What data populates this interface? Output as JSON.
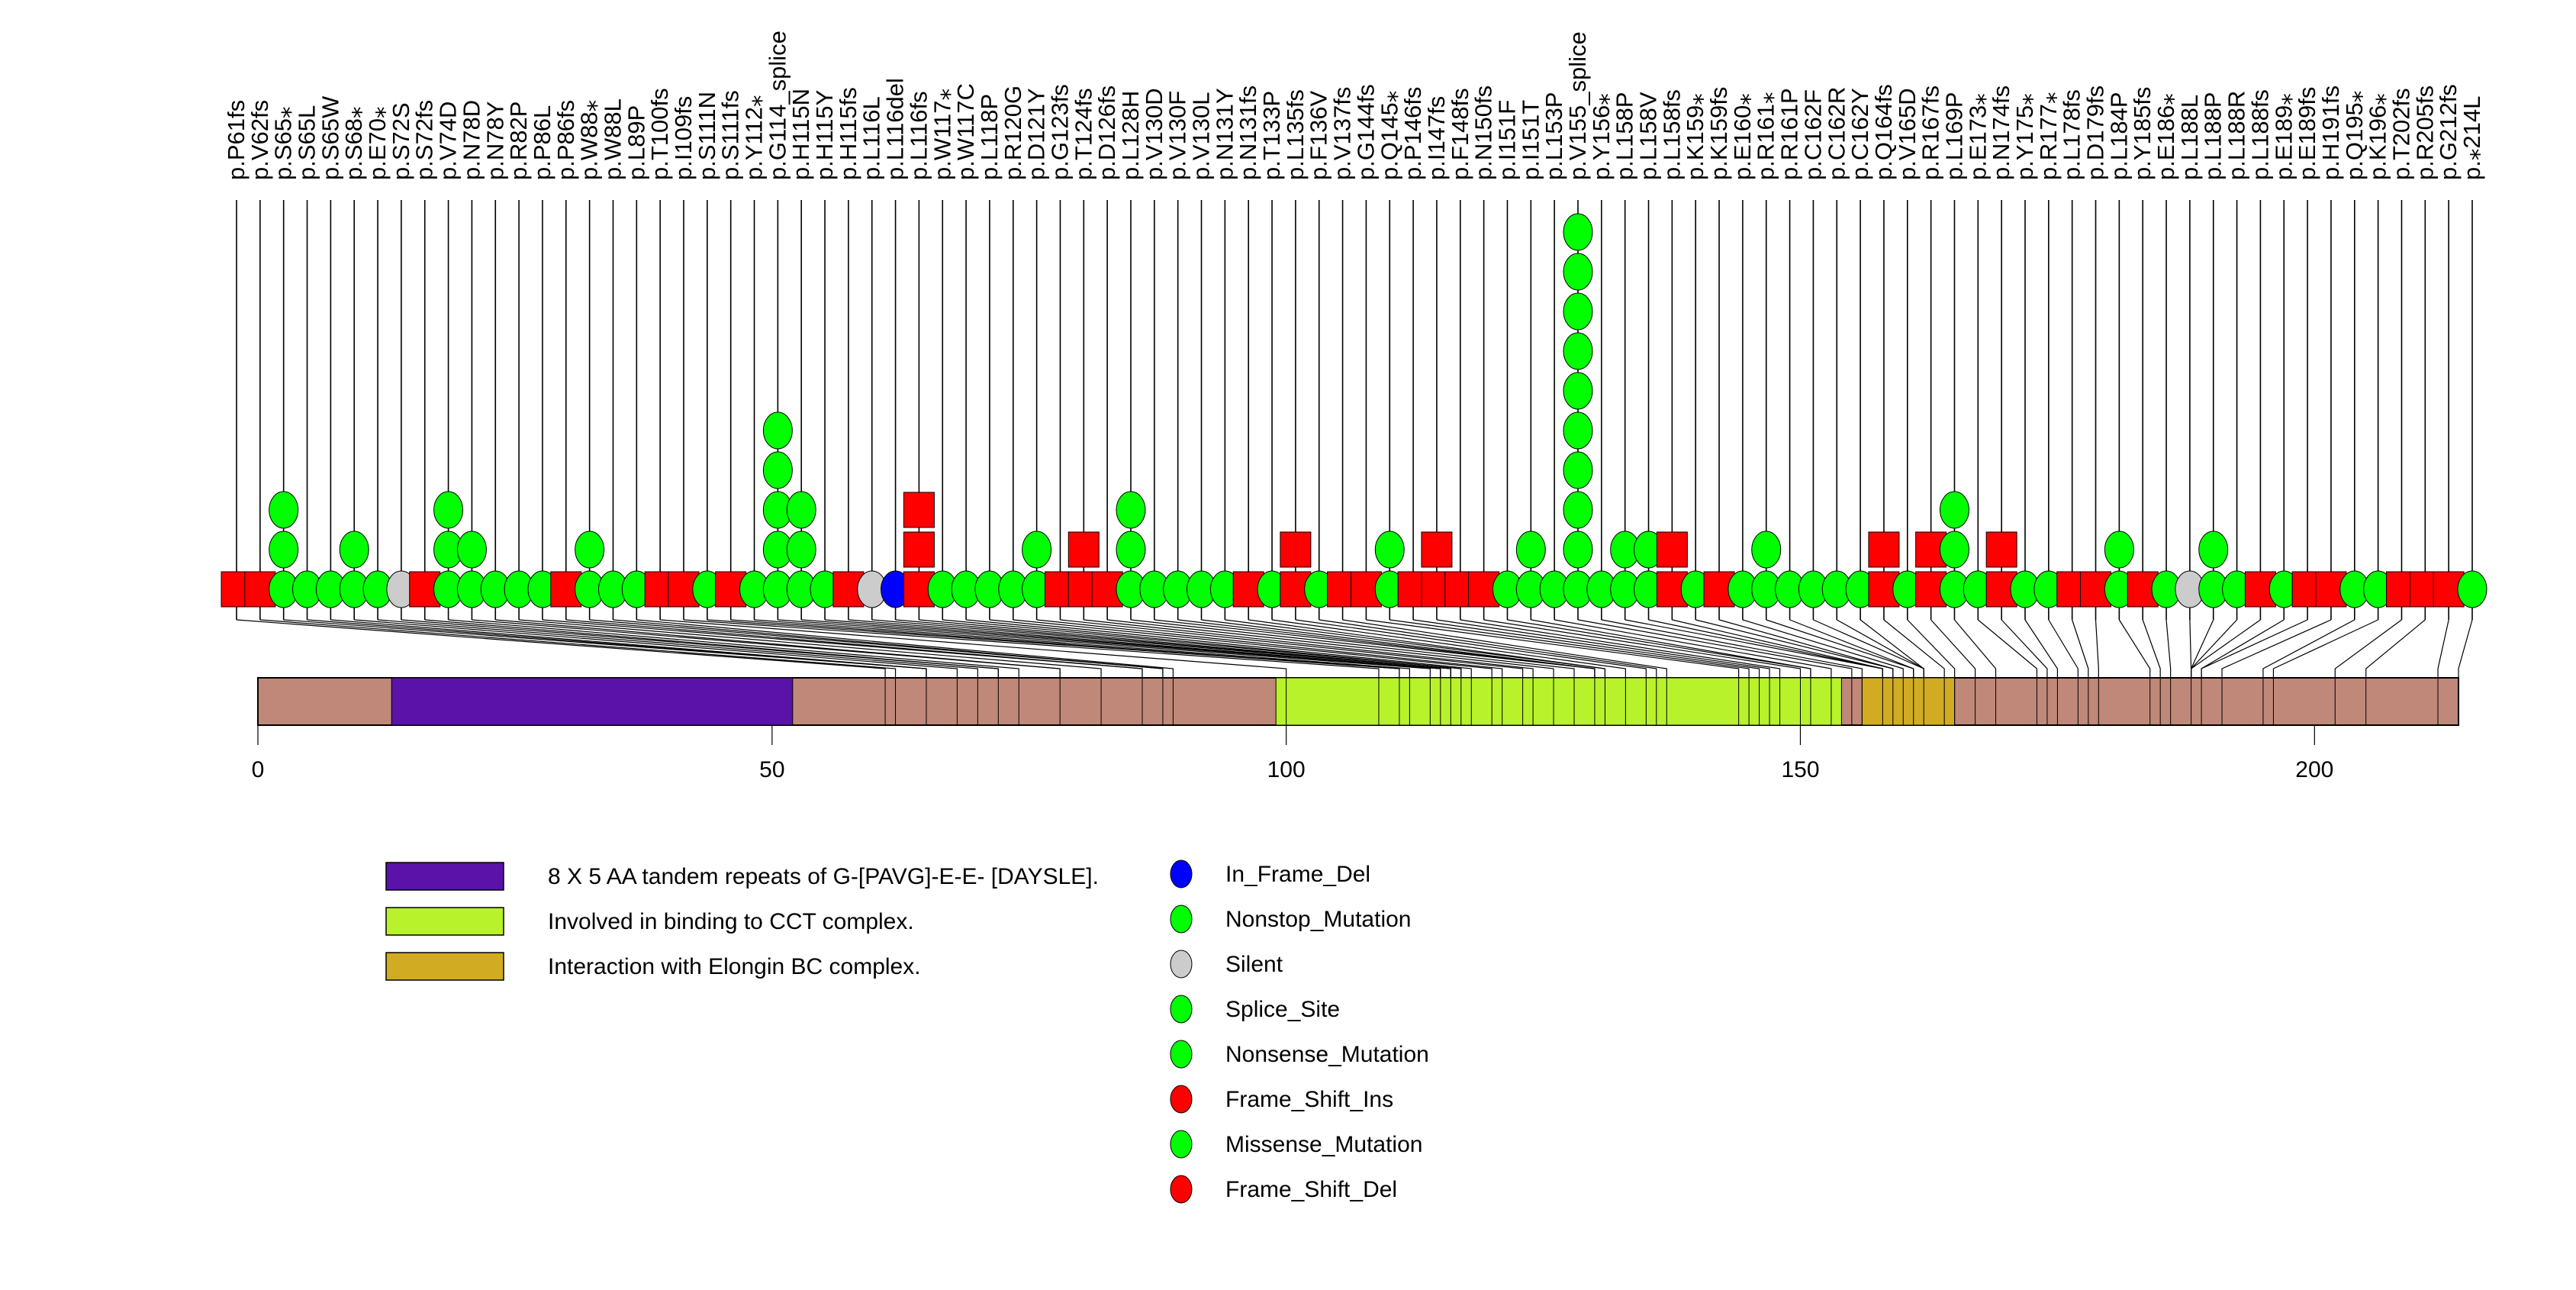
{
  "chart_data": {
    "type": "lollipop",
    "title": "",
    "xlabel": "",
    "protein_length": 214,
    "xlim": [
      0,
      214
    ],
    "axis_ticks": [
      0,
      50,
      100,
      150,
      200
    ],
    "domains": [
      {
        "name": "8 X 5 AA tandem repeats of G-[PAVG]-E-E- [DAYSLE].",
        "start": 13,
        "end": 52,
        "color": "#5a12a8"
      },
      {
        "name": "Involved in binding to CCT complex.",
        "start": 99,
        "end": 154,
        "color": "#b8f22a"
      },
      {
        "name": "Interaction with Elongin BC complex.",
        "start": 156,
        "end": 165,
        "color": "#d1ac22"
      }
    ],
    "backbone_color": "#c08878",
    "mutation_types": [
      {
        "name": "In_Frame_Del",
        "color": "#0000ff",
        "shape": "circle"
      },
      {
        "name": "Nonstop_Mutation",
        "color": "#00ff00",
        "shape": "circle"
      },
      {
        "name": "Silent",
        "color": "#cccccc",
        "shape": "circle"
      },
      {
        "name": "Splice_Site",
        "color": "#00ff00",
        "shape": "circle"
      },
      {
        "name": "Nonsense_Mutation",
        "color": "#00ff00",
        "shape": "circle"
      },
      {
        "name": "Frame_Shift_Ins",
        "color": "#ff0000",
        "shape": "square"
      },
      {
        "name": "Missense_Mutation",
        "color": "#00ff00",
        "shape": "circle"
      },
      {
        "name": "Frame_Shift_Del",
        "color": "#ff0000",
        "shape": "square"
      }
    ],
    "mutations": [
      {
        "label": "p.P61fs",
        "pos": 61,
        "type": "Frame_Shift_Del",
        "count": 1
      },
      {
        "label": "p.V62fs",
        "pos": 62,
        "type": "Frame_Shift_Del",
        "count": 1
      },
      {
        "label": "p.S65*",
        "pos": 65,
        "type": "Nonsense_Mutation",
        "count": 3
      },
      {
        "label": "p.S65L",
        "pos": 65,
        "type": "Missense_Mutation",
        "count": 1
      },
      {
        "label": "p.S65W",
        "pos": 65,
        "type": "Missense_Mutation",
        "count": 1
      },
      {
        "label": "p.S68*",
        "pos": 68,
        "type": "Nonsense_Mutation",
        "count": 2
      },
      {
        "label": "p.E70*",
        "pos": 70,
        "type": "Nonsense_Mutation",
        "count": 1
      },
      {
        "label": "p.S72S",
        "pos": 72,
        "type": "Silent",
        "count": 1
      },
      {
        "label": "p.S72fs",
        "pos": 72,
        "type": "Frame_Shift_Del",
        "count": 1
      },
      {
        "label": "p.V74D",
        "pos": 74,
        "type": "Missense_Mutation",
        "count": 3
      },
      {
        "label": "p.N78D",
        "pos": 78,
        "type": "Missense_Mutation",
        "count": 2
      },
      {
        "label": "p.N78Y",
        "pos": 78,
        "type": "Missense_Mutation",
        "count": 1
      },
      {
        "label": "p.R82P",
        "pos": 82,
        "type": "Missense_Mutation",
        "count": 1
      },
      {
        "label": "p.P86L",
        "pos": 86,
        "type": "Missense_Mutation",
        "count": 1
      },
      {
        "label": "p.P86fs",
        "pos": 86,
        "type": "Frame_Shift_Del",
        "count": 1
      },
      {
        "label": "p.W88*",
        "pos": 88,
        "type": "Nonsense_Mutation",
        "count": 2
      },
      {
        "label": "p.W88L",
        "pos": 88,
        "type": "Missense_Mutation",
        "count": 1
      },
      {
        "label": "p.L89P",
        "pos": 89,
        "type": "Missense_Mutation",
        "count": 1
      },
      {
        "label": "p.T100fs",
        "pos": 100,
        "type": "Frame_Shift_Del",
        "count": 1
      },
      {
        "label": "p.I109fs",
        "pos": 109,
        "type": "Frame_Shift_Del",
        "count": 1
      },
      {
        "label": "p.S111N",
        "pos": 111,
        "type": "Missense_Mutation",
        "count": 1
      },
      {
        "label": "p.S111fs",
        "pos": 111,
        "type": "Frame_Shift_Del",
        "count": 1
      },
      {
        "label": "p.Y112*",
        "pos": 112,
        "type": "Nonsense_Mutation",
        "count": 1
      },
      {
        "label": "p.G114_splice",
        "pos": 114,
        "type": "Splice_Site",
        "count": 5
      },
      {
        "label": "p.H115N",
        "pos": 115,
        "type": "Missense_Mutation",
        "count": 3
      },
      {
        "label": "p.H115Y",
        "pos": 115,
        "type": "Missense_Mutation",
        "count": 1
      },
      {
        "label": "p.H115fs",
        "pos": 115,
        "type": "Frame_Shift_Del",
        "count": 1
      },
      {
        "label": "p.L116L",
        "pos": 116,
        "type": "Silent",
        "count": 1
      },
      {
        "label": "p.L116del",
        "pos": 116,
        "type": "In_Frame_Del",
        "count": 1
      },
      {
        "label": "p.L116fs",
        "pos": 116,
        "type": "Frame_Shift_Del",
        "count": 3
      },
      {
        "label": "p.W117*",
        "pos": 117,
        "type": "Nonsense_Mutation",
        "count": 1
      },
      {
        "label": "p.W117C",
        "pos": 117,
        "type": "Missense_Mutation",
        "count": 1
      },
      {
        "label": "p.L118P",
        "pos": 118,
        "type": "Missense_Mutation",
        "count": 1
      },
      {
        "label": "p.R120G",
        "pos": 120,
        "type": "Missense_Mutation",
        "count": 1
      },
      {
        "label": "p.D121Y",
        "pos": 121,
        "type": "Missense_Mutation",
        "count": 2
      },
      {
        "label": "p.G123fs",
        "pos": 123,
        "type": "Frame_Shift_Del",
        "count": 1
      },
      {
        "label": "p.T124fs",
        "pos": 124,
        "type": "Frame_Shift_Del",
        "count": 2
      },
      {
        "label": "p.D126fs",
        "pos": 126,
        "type": "Frame_Shift_Del",
        "count": 1
      },
      {
        "label": "p.L128H",
        "pos": 128,
        "type": "Missense_Mutation",
        "count": 3
      },
      {
        "label": "p.V130D",
        "pos": 130,
        "type": "Missense_Mutation",
        "count": 1
      },
      {
        "label": "p.V130F",
        "pos": 130,
        "type": "Missense_Mutation",
        "count": 1
      },
      {
        "label": "p.V130L",
        "pos": 130,
        "type": "Missense_Mutation",
        "count": 1
      },
      {
        "label": "p.N131Y",
        "pos": 131,
        "type": "Missense_Mutation",
        "count": 1
      },
      {
        "label": "p.N131fs",
        "pos": 131,
        "type": "Frame_Shift_Del",
        "count": 1
      },
      {
        "label": "p.T133P",
        "pos": 133,
        "type": "Missense_Mutation",
        "count": 1
      },
      {
        "label": "p.L135fs",
        "pos": 135,
        "type": "Frame_Shift_Del",
        "count": 2
      },
      {
        "label": "p.F136V",
        "pos": 136,
        "type": "Missense_Mutation",
        "count": 1
      },
      {
        "label": "p.V137fs",
        "pos": 137,
        "type": "Frame_Shift_Del",
        "count": 1
      },
      {
        "label": "p.G144fs",
        "pos": 144,
        "type": "Frame_Shift_Del",
        "count": 1
      },
      {
        "label": "p.Q145*",
        "pos": 145,
        "type": "Nonsense_Mutation",
        "count": 2
      },
      {
        "label": "p.P146fs",
        "pos": 146,
        "type": "Frame_Shift_Del",
        "count": 1
      },
      {
        "label": "p.I147fs",
        "pos": 147,
        "type": "Frame_Shift_Del",
        "count": 2
      },
      {
        "label": "p.F148fs",
        "pos": 148,
        "type": "Frame_Shift_Del",
        "count": 1
      },
      {
        "label": "p.N150fs",
        "pos": 150,
        "type": "Frame_Shift_Del",
        "count": 1
      },
      {
        "label": "p.I151F",
        "pos": 151,
        "type": "Missense_Mutation",
        "count": 1
      },
      {
        "label": "p.I151T",
        "pos": 151,
        "type": "Missense_Mutation",
        "count": 2
      },
      {
        "label": "p.L153P",
        "pos": 153,
        "type": "Missense_Mutation",
        "count": 1
      },
      {
        "label": "p.V155_splice",
        "pos": 155,
        "type": "Splice_Site",
        "count": 10
      },
      {
        "label": "p.Y156*",
        "pos": 156,
        "type": "Nonsense_Mutation",
        "count": 1
      },
      {
        "label": "p.L158P",
        "pos": 158,
        "type": "Missense_Mutation",
        "count": 2
      },
      {
        "label": "p.L158V",
        "pos": 158,
        "type": "Missense_Mutation",
        "count": 2
      },
      {
        "label": "p.L158fs",
        "pos": 158,
        "type": "Frame_Shift_Del",
        "count": 2
      },
      {
        "label": "p.K159*",
        "pos": 159,
        "type": "Nonsense_Mutation",
        "count": 1
      },
      {
        "label": "p.K159fs",
        "pos": 159,
        "type": "Frame_Shift_Del",
        "count": 1
      },
      {
        "label": "p.E160*",
        "pos": 160,
        "type": "Nonsense_Mutation",
        "count": 1
      },
      {
        "label": "p.R161*",
        "pos": 161,
        "type": "Nonsense_Mutation",
        "count": 2
      },
      {
        "label": "p.R161P",
        "pos": 161,
        "type": "Missense_Mutation",
        "count": 1
      },
      {
        "label": "p.C162F",
        "pos": 162,
        "type": "Missense_Mutation",
        "count": 1
      },
      {
        "label": "p.C162R",
        "pos": 162,
        "type": "Missense_Mutation",
        "count": 1
      },
      {
        "label": "p.C162Y",
        "pos": 162,
        "type": "Missense_Mutation",
        "count": 1
      },
      {
        "label": "p.Q164fs",
        "pos": 164,
        "type": "Frame_Shift_Del",
        "count": 2
      },
      {
        "label": "p.V165D",
        "pos": 165,
        "type": "Missense_Mutation",
        "count": 1
      },
      {
        "label": "p.R167fs",
        "pos": 167,
        "type": "Frame_Shift_Del",
        "count": 2
      },
      {
        "label": "p.L169P",
        "pos": 169,
        "type": "Missense_Mutation",
        "count": 3
      },
      {
        "label": "p.E173*",
        "pos": 173,
        "type": "Nonsense_Mutation",
        "count": 1
      },
      {
        "label": "p.N174fs",
        "pos": 174,
        "type": "Frame_Shift_Del",
        "count": 2
      },
      {
        "label": "p.Y175*",
        "pos": 175,
        "type": "Nonsense_Mutation",
        "count": 1
      },
      {
        "label": "p.R177*",
        "pos": 177,
        "type": "Nonsense_Mutation",
        "count": 1
      },
      {
        "label": "p.L178fs",
        "pos": 178,
        "type": "Frame_Shift_Del",
        "count": 1
      },
      {
        "label": "p.D179fs",
        "pos": 179,
        "type": "Frame_Shift_Del",
        "count": 1
      },
      {
        "label": "p.L184P",
        "pos": 184,
        "type": "Missense_Mutation",
        "count": 2
      },
      {
        "label": "p.Y185fs",
        "pos": 185,
        "type": "Frame_Shift_Del",
        "count": 1
      },
      {
        "label": "p.E186*",
        "pos": 186,
        "type": "Nonsense_Mutation",
        "count": 1
      },
      {
        "label": "p.L188L",
        "pos": 188,
        "type": "Silent",
        "count": 1
      },
      {
        "label": "p.L188P",
        "pos": 188,
        "type": "Missense_Mutation",
        "count": 2
      },
      {
        "label": "p.L188R",
        "pos": 188,
        "type": "Missense_Mutation",
        "count": 1
      },
      {
        "label": "p.L188fs",
        "pos": 188,
        "type": "Frame_Shift_Del",
        "count": 1
      },
      {
        "label": "p.E189*",
        "pos": 189,
        "type": "Nonsense_Mutation",
        "count": 1
      },
      {
        "label": "p.E189fs",
        "pos": 189,
        "type": "Frame_Shift_Del",
        "count": 1
      },
      {
        "label": "p.H191fs",
        "pos": 191,
        "type": "Frame_Shift_Del",
        "count": 1
      },
      {
        "label": "p.Q195*",
        "pos": 195,
        "type": "Nonsense_Mutation",
        "count": 1
      },
      {
        "label": "p.K196*",
        "pos": 196,
        "type": "Nonsense_Mutation",
        "count": 1
      },
      {
        "label": "p.T202fs",
        "pos": 202,
        "type": "Frame_Shift_Del",
        "count": 1
      },
      {
        "label": "p.R205fs",
        "pos": 205,
        "type": "Frame_Shift_Del",
        "count": 1
      },
      {
        "label": "p.G212fs",
        "pos": 212,
        "type": "Frame_Shift_Del",
        "count": 1
      },
      {
        "label": "p.*214L",
        "pos": 214,
        "type": "Nonstop_Mutation",
        "count": 1
      }
    ]
  },
  "legend": {
    "domains": [
      "8 X 5 AA tandem repeats of G-[PAVG]-E-E- [DAYSLE].",
      "Involved in binding to CCT complex.",
      "Interaction with Elongin BC complex."
    ],
    "mutation_types": [
      "In_Frame_Del",
      "Nonstop_Mutation",
      "Silent",
      "Splice_Site",
      "Nonsense_Mutation",
      "Frame_Shift_Ins",
      "Missense_Mutation",
      "Frame_Shift_Del"
    ]
  }
}
